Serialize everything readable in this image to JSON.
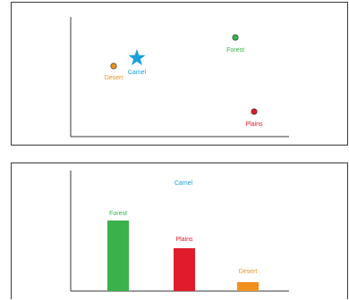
{
  "scatter": {
    "points": [
      {
        "label": "Forest",
        "color": "#3ab14a",
        "shape": "circle"
      },
      {
        "label": "Desert",
        "color": "#f0901e",
        "shape": "circle"
      },
      {
        "label": "Camel",
        "color": "#1aa0dc",
        "shape": "star"
      },
      {
        "label": "Plains",
        "color": "#e01b2c",
        "shape": "circle"
      }
    ]
  },
  "bars": {
    "query_label": "Camel",
    "query_color": "#1aa0dc",
    "items": [
      {
        "label": "Forest",
        "color": "#3ab14a"
      },
      {
        "label": "Plains",
        "color": "#e01b2c"
      },
      {
        "label": "Desert",
        "color": "#f0901e"
      }
    ]
  },
  "colors": {
    "axis": "#3a3a3a",
    "border": "#3a3a3a"
  }
}
